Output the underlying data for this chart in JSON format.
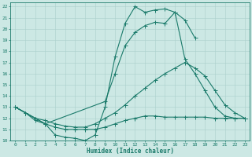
{
  "xlabel": "Humidex (Indice chaleur)",
  "bg_color": "#cce8e4",
  "line_color": "#1a7a6a",
  "grid_color": "#aad0cc",
  "xlim": [
    -0.5,
    23.5
  ],
  "ylim": [
    10,
    22.4
  ],
  "xticks": [
    0,
    1,
    2,
    3,
    4,
    5,
    6,
    7,
    8,
    9,
    10,
    11,
    12,
    13,
    14,
    15,
    16,
    17,
    18,
    19,
    20,
    21,
    22,
    23
  ],
  "yticks": [
    10,
    11,
    12,
    13,
    14,
    15,
    16,
    17,
    18,
    19,
    20,
    21,
    22
  ],
  "line1_x": [
    0,
    1,
    2,
    3,
    4,
    5,
    6,
    7,
    8,
    9,
    10,
    11,
    12,
    13,
    14,
    15,
    16,
    17,
    18
  ],
  "line1_y": [
    13,
    12.5,
    11.8,
    11.5,
    10.5,
    10.3,
    10.2,
    10.0,
    10.5,
    13.0,
    17.5,
    20.5,
    22.0,
    21.5,
    21.7,
    21.8,
    21.5,
    20.8,
    19.2
  ],
  "line2_x": [
    0,
    2,
    3,
    9,
    10,
    11,
    12,
    13,
    14,
    15,
    16,
    17,
    18,
    19,
    20,
    21,
    22,
    23
  ],
  "line2_y": [
    13.0,
    12.0,
    11.5,
    13.5,
    16.0,
    18.5,
    19.7,
    20.3,
    20.6,
    20.5,
    21.5,
    17.3,
    16.0,
    14.5,
    13.0,
    12.2,
    12.0,
    12.0
  ],
  "line3_x": [
    0,
    1,
    2,
    3,
    4,
    5,
    6,
    7,
    8,
    9,
    10,
    11,
    12,
    13,
    14,
    15,
    16,
    17,
    18,
    19,
    20,
    21,
    22,
    23
  ],
  "line3_y": [
    13.0,
    12.5,
    12.0,
    11.8,
    11.5,
    11.3,
    11.2,
    11.2,
    11.5,
    12.0,
    12.5,
    13.2,
    14.0,
    14.7,
    15.4,
    16.0,
    16.5,
    17.0,
    16.5,
    15.8,
    14.5,
    13.2,
    12.5,
    12.0
  ],
  "line4_x": [
    0,
    1,
    2,
    3,
    4,
    5,
    6,
    7,
    8,
    9,
    10,
    11,
    12,
    13,
    14,
    15,
    16,
    17,
    18,
    19,
    20,
    21,
    22,
    23
  ],
  "line4_y": [
    13.0,
    12.5,
    12.0,
    11.5,
    11.2,
    11.0,
    11.0,
    11.0,
    11.0,
    11.2,
    11.5,
    11.8,
    12.0,
    12.2,
    12.2,
    12.1,
    12.1,
    12.1,
    12.1,
    12.1,
    12.0,
    12.0,
    12.0,
    12.0
  ]
}
